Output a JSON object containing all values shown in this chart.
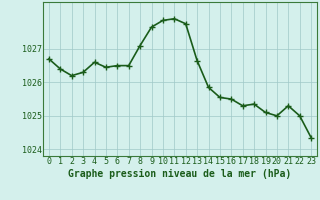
{
  "x": [
    0,
    1,
    2,
    3,
    4,
    5,
    6,
    7,
    8,
    9,
    10,
    11,
    12,
    13,
    14,
    15,
    16,
    17,
    18,
    19,
    20,
    21,
    22,
    23
  ],
  "y": [
    1026.7,
    1026.4,
    1026.2,
    1026.3,
    1026.6,
    1026.45,
    1026.5,
    1026.5,
    1027.1,
    1027.65,
    1027.85,
    1027.9,
    1027.75,
    1026.65,
    1025.85,
    1025.55,
    1025.5,
    1025.3,
    1025.35,
    1025.1,
    1025.0,
    1025.3,
    1025.0,
    1024.35
  ],
  "line_color": "#1a5c1a",
  "marker_color": "#1a5c1a",
  "bg_color": "#d4f0ec",
  "grid_color": "#a0c8c8",
  "xlabel": "Graphe pression niveau de la mer (hPa)",
  "xlabel_color": "#1a5c1a",
  "tick_color": "#1a5c1a",
  "ylim": [
    1023.8,
    1028.4
  ],
  "yticks": [
    1024,
    1025,
    1026,
    1027
  ],
  "xticks": [
    0,
    1,
    2,
    3,
    4,
    5,
    6,
    7,
    8,
    9,
    10,
    11,
    12,
    13,
    14,
    15,
    16,
    17,
    18,
    19,
    20,
    21,
    22,
    23
  ],
  "marker_size": 2.5,
  "line_width": 1.2,
  "font_size_ticks": 6.0,
  "font_size_xlabel": 7.0
}
